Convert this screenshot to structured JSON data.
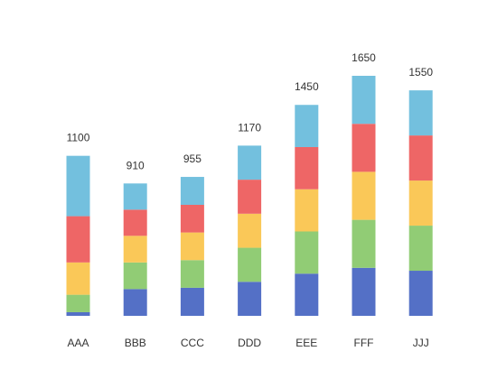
{
  "chart_data": {
    "type": "bar",
    "stacked": true,
    "categories": [
      "AAA",
      "BBB",
      "CCC",
      "DDD",
      "EEE",
      "FFF",
      "JJJ"
    ],
    "series": [
      {
        "values": [
          25,
          184,
          193,
          234,
          290,
          330,
          310
        ],
        "color": "#5470c6"
      },
      {
        "values": [
          120,
          183,
          190,
          234,
          290,
          330,
          310
        ],
        "color": "#91cc75"
      },
      {
        "values": [
          222,
          183,
          190,
          234,
          290,
          330,
          310
        ],
        "color": "#fac858"
      },
      {
        "values": [
          318,
          180,
          190,
          234,
          290,
          330,
          310
        ],
        "color": "#ee6666"
      },
      {
        "values": [
          415,
          180,
          192,
          234,
          290,
          330,
          310
        ],
        "color": "#73c0de"
      }
    ],
    "totals": [
      "1100",
      "910",
      "955",
      "1170",
      "1450",
      "1650",
      "1550"
    ],
    "ylim": [
      0,
      1650
    ],
    "grid": false,
    "legend": "none"
  }
}
